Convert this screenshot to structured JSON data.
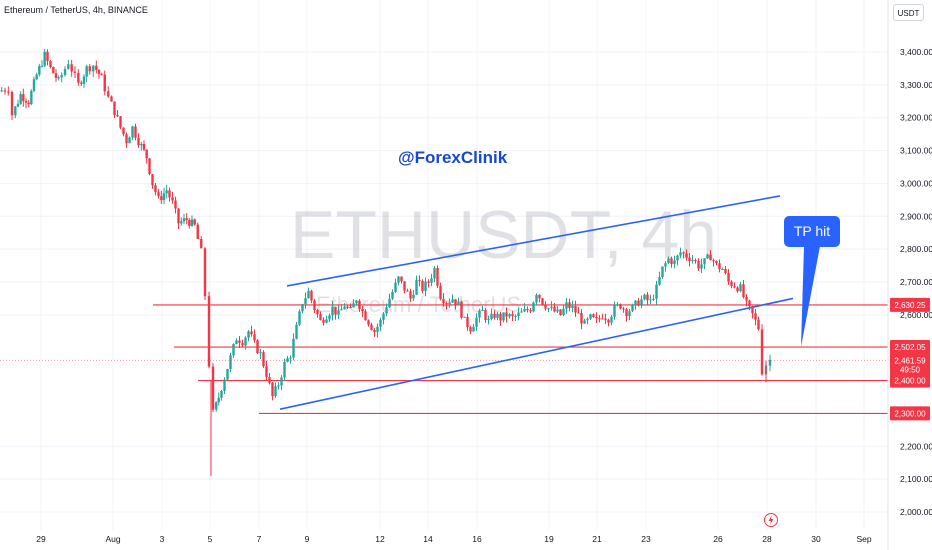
{
  "header": {
    "title": "Ethereum / TetherUS, 4h, BINANCE",
    "currency_button": "USDT"
  },
  "watermark": {
    "symbol": "ETHUSDT, 4h",
    "name": "Ethereum / TetherUS"
  },
  "annotations": {
    "handle": "@ForexClinik",
    "tp_label": "TP hit"
  },
  "colors": {
    "up": "#26a69a",
    "down": "#f23645",
    "channel": "#2962ff",
    "level": "#f23645",
    "tp_bubble": "#2962ff"
  },
  "chart_data": {
    "type": "candlestick",
    "y_range": [
      1980,
      3520
    ],
    "x_range": [
      0,
      865
    ],
    "y_ticks": [
      {
        "value": 3400,
        "label": "3,400.00"
      },
      {
        "value": 3300,
        "label": "3,300.00"
      },
      {
        "value": 3200,
        "label": "3,200.00"
      },
      {
        "value": 3100,
        "label": "3,100.00"
      },
      {
        "value": 3000,
        "label": "3,000.00"
      },
      {
        "value": 2900,
        "label": "2,900.00"
      },
      {
        "value": 2800,
        "label": "2,800.00"
      },
      {
        "value": 2700,
        "label": "2,700.00"
      },
      {
        "value": 2600,
        "label": "2,600.00"
      },
      {
        "value": 2200,
        "label": "2,200.00"
      },
      {
        "value": 2100,
        "label": "2,100.00"
      },
      {
        "value": 2000,
        "label": "2,000.00"
      }
    ],
    "x_ticks": [
      {
        "x": 41,
        "label": "29"
      },
      {
        "x": 113,
        "label": "Aug"
      },
      {
        "x": 162,
        "label": "3"
      },
      {
        "x": 210,
        "label": "5"
      },
      {
        "x": 259,
        "label": "7"
      },
      {
        "x": 307,
        "label": "9"
      },
      {
        "x": 380,
        "label": "12"
      },
      {
        "x": 428,
        "label": "14"
      },
      {
        "x": 477,
        "label": "16"
      },
      {
        "x": 549,
        "label": "19"
      },
      {
        "x": 597,
        "label": "21"
      },
      {
        "x": 646,
        "label": "23"
      },
      {
        "x": 718,
        "label": "26"
      },
      {
        "x": 767,
        "label": "28"
      },
      {
        "x": 816,
        "label": "30"
      },
      {
        "x": 864,
        "label": "Sep"
      }
    ],
    "levels": [
      {
        "price": 2630.25,
        "label": "2,630.25",
        "x_start": 153
      },
      {
        "price": 2502.05,
        "label": "2,502.05",
        "x_start": 174
      },
      {
        "price": 2400.0,
        "label": "2,400.00",
        "x_start": 198
      },
      {
        "price": 2300.0,
        "label": "2,300.00",
        "x_start": 259
      }
    ],
    "last_price": {
      "price": 2461.59,
      "label": "2,461.59",
      "countdown": "49:50"
    },
    "channel": {
      "upper": [
        [
          287,
          2688
        ],
        [
          780,
          2962
        ]
      ],
      "lower": [
        [
          280,
          2313
        ],
        [
          793,
          2650
        ]
      ]
    },
    "tp_marker": {
      "x": 813,
      "price": 2800
    },
    "series": [
      {
        "x": 0,
        "price": 3280
      },
      {
        "x": 10,
        "price": 3290
      },
      {
        "x": 14,
        "price": 3210
      },
      {
        "x": 22,
        "price": 3270
      },
      {
        "x": 30,
        "price": 3250
      },
      {
        "x": 38,
        "price": 3330
      },
      {
        "x": 46,
        "price": 3390
      },
      {
        "x": 52,
        "price": 3350
      },
      {
        "x": 60,
        "price": 3310
      },
      {
        "x": 70,
        "price": 3370
      },
      {
        "x": 80,
        "price": 3300
      },
      {
        "x": 88,
        "price": 3350
      },
      {
        "x": 95,
        "price": 3360
      },
      {
        "x": 103,
        "price": 3320
      },
      {
        "x": 110,
        "price": 3260
      },
      {
        "x": 116,
        "price": 3220
      },
      {
        "x": 122,
        "price": 3170
      },
      {
        "x": 128,
        "price": 3130
      },
      {
        "x": 134,
        "price": 3170
      },
      {
        "x": 140,
        "price": 3130
      },
      {
        "x": 148,
        "price": 3080
      },
      {
        "x": 154,
        "price": 3000
      },
      {
        "x": 160,
        "price": 2950
      },
      {
        "x": 168,
        "price": 2980
      },
      {
        "x": 174,
        "price": 2940
      },
      {
        "x": 180,
        "price": 2880
      },
      {
        "x": 188,
        "price": 2890
      },
      {
        "x": 196,
        "price": 2870
      },
      {
        "x": 203,
        "price": 2790
      },
      {
        "x": 207,
        "price": 2660
      },
      {
        "x": 211,
        "price": 2450
      },
      {
        "x": 215,
        "price": 2300
      },
      {
        "x": 220,
        "price": 2350
      },
      {
        "x": 226,
        "price": 2410
      },
      {
        "x": 232,
        "price": 2470
      },
      {
        "x": 238,
        "price": 2530
      },
      {
        "x": 244,
        "price": 2520
      },
      {
        "x": 250,
        "price": 2550
      },
      {
        "x": 256,
        "price": 2510
      },
      {
        "x": 262,
        "price": 2480
      },
      {
        "x": 268,
        "price": 2420
      },
      {
        "x": 274,
        "price": 2350
      },
      {
        "x": 280,
        "price": 2390
      },
      {
        "x": 286,
        "price": 2450
      },
      {
        "x": 292,
        "price": 2480
      },
      {
        "x": 298,
        "price": 2560
      },
      {
        "x": 304,
        "price": 2640
      },
      {
        "x": 310,
        "price": 2670
      },
      {
        "x": 316,
        "price": 2620
      },
      {
        "x": 322,
        "price": 2580
      },
      {
        "x": 328,
        "price": 2600
      },
      {
        "x": 334,
        "price": 2620
      },
      {
        "x": 340,
        "price": 2600
      },
      {
        "x": 346,
        "price": 2630
      },
      {
        "x": 352,
        "price": 2610
      },
      {
        "x": 358,
        "price": 2650
      },
      {
        "x": 364,
        "price": 2610
      },
      {
        "x": 370,
        "price": 2580
      },
      {
        "x": 376,
        "price": 2550
      },
      {
        "x": 382,
        "price": 2580
      },
      {
        "x": 388,
        "price": 2630
      },
      {
        "x": 394,
        "price": 2670
      },
      {
        "x": 400,
        "price": 2710
      },
      {
        "x": 406,
        "price": 2680
      },
      {
        "x": 412,
        "price": 2650
      },
      {
        "x": 418,
        "price": 2700
      },
      {
        "x": 424,
        "price": 2680
      },
      {
        "x": 430,
        "price": 2700
      },
      {
        "x": 436,
        "price": 2740
      },
      {
        "x": 442,
        "price": 2660
      },
      {
        "x": 448,
        "price": 2640
      },
      {
        "x": 454,
        "price": 2650
      },
      {
        "x": 460,
        "price": 2630
      },
      {
        "x": 466,
        "price": 2580
      },
      {
        "x": 472,
        "price": 2560
      },
      {
        "x": 478,
        "price": 2590
      },
      {
        "x": 484,
        "price": 2610
      },
      {
        "x": 490,
        "price": 2580
      },
      {
        "x": 496,
        "price": 2600
      },
      {
        "x": 502,
        "price": 2590
      },
      {
        "x": 508,
        "price": 2600
      },
      {
        "x": 514,
        "price": 2590
      },
      {
        "x": 520,
        "price": 2600
      },
      {
        "x": 526,
        "price": 2610
      },
      {
        "x": 532,
        "price": 2620
      },
      {
        "x": 538,
        "price": 2670
      },
      {
        "x": 544,
        "price": 2640
      },
      {
        "x": 550,
        "price": 2620
      },
      {
        "x": 556,
        "price": 2610
      },
      {
        "x": 562,
        "price": 2600
      },
      {
        "x": 568,
        "price": 2630
      },
      {
        "x": 574,
        "price": 2620
      },
      {
        "x": 580,
        "price": 2600
      },
      {
        "x": 586,
        "price": 2570
      },
      {
        "x": 592,
        "price": 2590
      },
      {
        "x": 598,
        "price": 2580
      },
      {
        "x": 604,
        "price": 2600
      },
      {
        "x": 610,
        "price": 2590
      },
      {
        "x": 616,
        "price": 2620
      },
      {
        "x": 622,
        "price": 2630
      },
      {
        "x": 628,
        "price": 2610
      },
      {
        "x": 634,
        "price": 2620
      },
      {
        "x": 640,
        "price": 2640
      },
      {
        "x": 646,
        "price": 2650
      },
      {
        "x": 652,
        "price": 2640
      },
      {
        "x": 658,
        "price": 2680
      },
      {
        "x": 664,
        "price": 2740
      },
      {
        "x": 670,
        "price": 2770
      },
      {
        "x": 676,
        "price": 2760
      },
      {
        "x": 682,
        "price": 2790
      },
      {
        "x": 688,
        "price": 2780
      },
      {
        "x": 694,
        "price": 2770
      },
      {
        "x": 700,
        "price": 2750
      },
      {
        "x": 706,
        "price": 2760
      },
      {
        "x": 712,
        "price": 2780
      },
      {
        "x": 718,
        "price": 2750
      },
      {
        "x": 724,
        "price": 2740
      },
      {
        "x": 730,
        "price": 2700
      },
      {
        "x": 736,
        "price": 2690
      },
      {
        "x": 742,
        "price": 2680
      },
      {
        "x": 748,
        "price": 2630
      },
      {
        "x": 754,
        "price": 2600
      },
      {
        "x": 760,
        "price": 2560
      },
      {
        "x": 764,
        "price": 2430
      },
      {
        "x": 768,
        "price": 2450
      },
      {
        "x": 772,
        "price": 2462
      }
    ]
  }
}
